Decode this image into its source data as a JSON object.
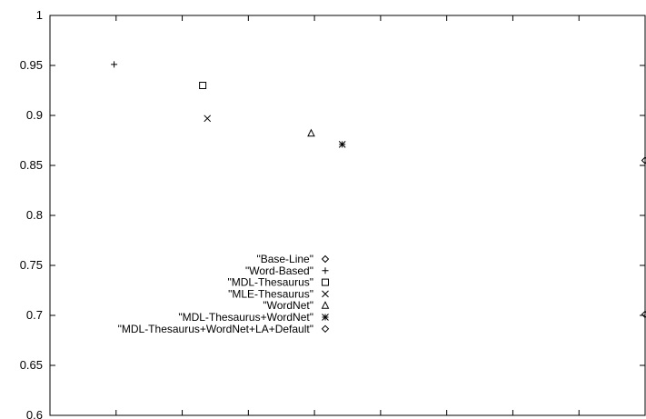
{
  "chart_data": {
    "type": "scatter",
    "title": "",
    "xlabel": "",
    "ylabel": "",
    "xlim": [
      0.1,
      1.0
    ],
    "ylim": [
      0.6,
      1.0
    ],
    "x_ticks": [
      "0.1",
      "0.2",
      "0.3",
      "0.4",
      "0.5",
      "0.6",
      "0.7",
      "0.8",
      "0.9",
      "1"
    ],
    "y_ticks": [
      "0.6",
      "0.65",
      "0.7",
      "0.75",
      "0.8",
      "0.85",
      "0.9",
      "0.95",
      "1"
    ],
    "grid": false,
    "legend_position": "lower-center",
    "series": [
      {
        "name": "\"Base-Line\"",
        "marker": "diamond",
        "points": [
          [
            1.0,
            0.855
          ]
        ]
      },
      {
        "name": "\"Word-Based\"",
        "marker": "plus",
        "points": [
          [
            0.197,
            0.951
          ]
        ]
      },
      {
        "name": "\"MDL-Thesaurus\"",
        "marker": "square",
        "points": [
          [
            0.331,
            0.93
          ]
        ]
      },
      {
        "name": "\"MLE-Thesaurus\"",
        "marker": "cross",
        "points": [
          [
            0.338,
            0.897
          ]
        ]
      },
      {
        "name": "\"WordNet\"",
        "marker": "triangle",
        "points": [
          [
            0.495,
            0.882
          ]
        ]
      },
      {
        "name": "\"MDL-Thesaurus+WordNet\"",
        "marker": "star",
        "points": [
          [
            0.542,
            0.871
          ]
        ]
      },
      {
        "name": "\"MDL-Thesaurus+WordNet+LA+Default\"",
        "marker": "diamond",
        "points": [
          [
            1.0,
            0.701
          ]
        ]
      }
    ]
  }
}
